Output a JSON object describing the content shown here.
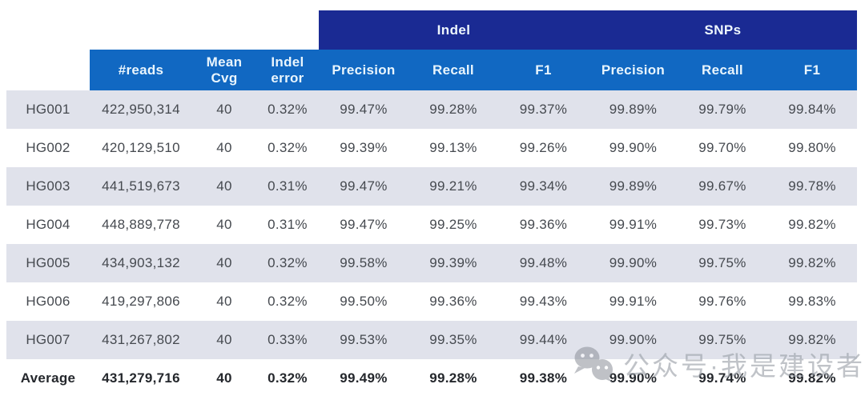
{
  "colors": {
    "group_header_bg": "#1a2a93",
    "column_header_bg": "#1168c2",
    "header_text": "#eef7fe",
    "stripe_bg": "#e0e2eb",
    "body_text": "#45494f",
    "watermark_gray": "#9aa0a8"
  },
  "watermark": {
    "icon": "wechat-icon",
    "text": "公众号·我是建设者"
  },
  "chart_data": {
    "type": "table",
    "group_headers": [
      {
        "label": "Indel",
        "span": 3
      },
      {
        "label": "SNPs",
        "span": 3
      }
    ],
    "columns": [
      "#reads",
      "Mean Cvg",
      "Indel error",
      "Precision",
      "Recall",
      "F1",
      "Precision",
      "Recall",
      "F1"
    ],
    "rows": [
      {
        "label": "HG001",
        "values": [
          "422,950,314",
          "40",
          "0.32%",
          "99.47%",
          "99.28%",
          "99.37%",
          "99.89%",
          "99.79%",
          "99.84%"
        ]
      },
      {
        "label": "HG002",
        "values": [
          "420,129,510",
          "40",
          "0.32%",
          "99.39%",
          "99.13%",
          "99.26%",
          "99.90%",
          "99.70%",
          "99.80%"
        ]
      },
      {
        "label": "HG003",
        "values": [
          "441,519,673",
          "40",
          "0.31%",
          "99.47%",
          "99.21%",
          "99.34%",
          "99.89%",
          "99.67%",
          "99.78%"
        ]
      },
      {
        "label": "HG004",
        "values": [
          "448,889,778",
          "40",
          "0.31%",
          "99.47%",
          "99.25%",
          "99.36%",
          "99.91%",
          "99.73%",
          "99.82%"
        ]
      },
      {
        "label": "HG005",
        "values": [
          "434,903,132",
          "40",
          "0.32%",
          "99.58%",
          "99.39%",
          "99.48%",
          "99.90%",
          "99.75%",
          "99.82%"
        ]
      },
      {
        "label": "HG006",
        "values": [
          "419,297,806",
          "40",
          "0.32%",
          "99.50%",
          "99.36%",
          "99.43%",
          "99.91%",
          "99.76%",
          "99.83%"
        ]
      },
      {
        "label": "HG007",
        "values": [
          "431,267,802",
          "40",
          "0.33%",
          "99.53%",
          "99.35%",
          "99.44%",
          "99.90%",
          "99.75%",
          "99.82%"
        ]
      },
      {
        "label": "Average",
        "values": [
          "431,279,716",
          "40",
          "0.32%",
          "99.49%",
          "99.28%",
          "99.38%",
          "99.90%",
          "99.74%",
          "99.82%"
        ]
      }
    ]
  }
}
